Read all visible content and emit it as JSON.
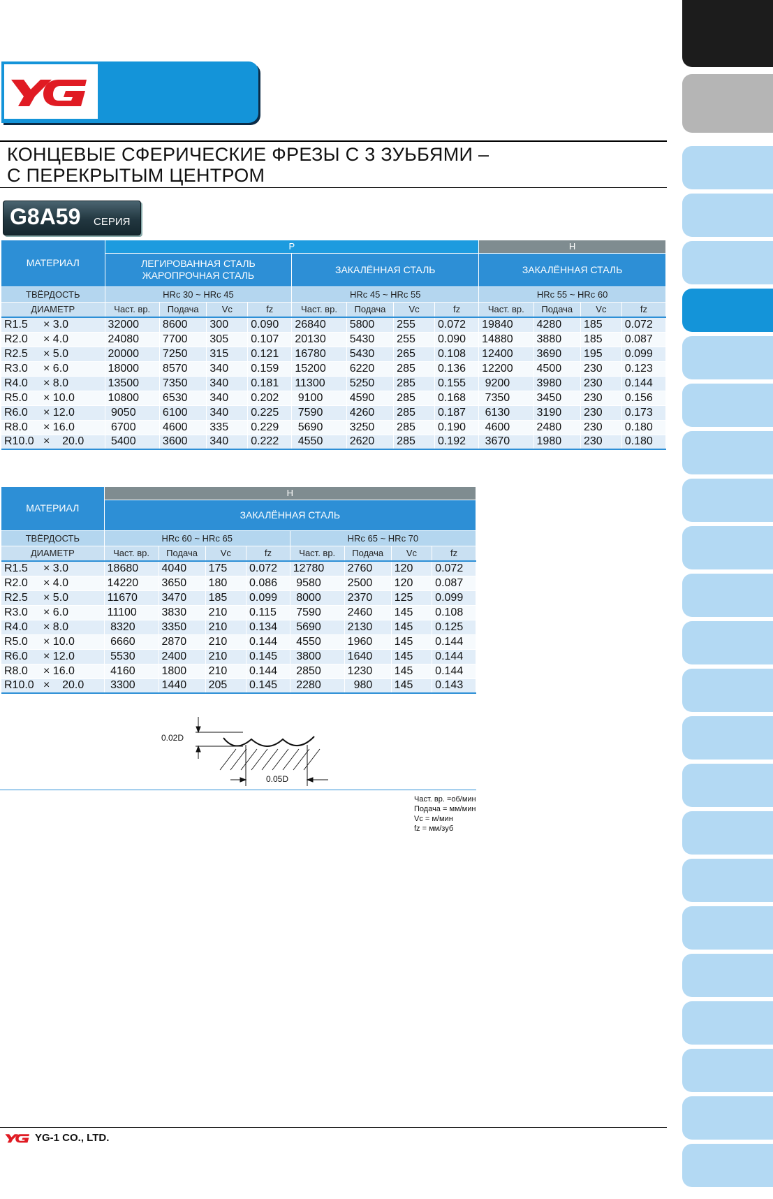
{
  "brand": {
    "logo_text": "YG",
    "company": "YG-1 CO., LTD.",
    "brand_red": "#e01b23",
    "brand_blue": "#1494d9"
  },
  "title": {
    "line1": "КОНЦЕВЫЕ СФЕРИЧЕСКИЕ ФРЕЗЫ С 3 ЗУЬБЯМИ –",
    "line2": "С ПЕРЕКРЫТЫМ ЦЕНТРОМ"
  },
  "series": {
    "code": "G8A59",
    "word": "СЕРИЯ"
  },
  "labels": {
    "material": "МАТЕРИАЛ",
    "hardness": "ТВЁРДОСТЬ",
    "diameter": "ДИАМЕТР"
  },
  "columns": [
    "Част. вр.",
    "Подача",
    "Vc",
    "fz"
  ],
  "diameters": [
    {
      "r": "R1.5",
      "l": "× 3.0"
    },
    {
      "r": "R2.0",
      "l": "× 4.0"
    },
    {
      "r": "R2.5",
      "l": "× 5.0"
    },
    {
      "r": "R3.0",
      "l": "× 6.0"
    },
    {
      "r": "R4.0",
      "l": "× 8.0"
    },
    {
      "r": "R5.0",
      "l": "× 10.0"
    },
    {
      "r": "R6.0",
      "l": "× 12.0"
    },
    {
      "r": "R8.0",
      "l": "× 16.0"
    },
    {
      "r": "R10.0",
      "l": "×    20.0"
    }
  ],
  "table1": {
    "group_p": "P",
    "group_h": "H",
    "materials": [
      "ЛЕГИРОВАННАЯ СТАЛЬ\nЖАРОПРОЧНАЯ СТАЛЬ",
      "ЗАКАЛЁННАЯ СТАЛЬ",
      "ЗАКАЛЁННАЯ СТАЛЬ"
    ],
    "hardness": [
      "HRc 30 ~ HRc 45",
      "HRc 45 ~ HRc 55",
      "HRc 55 ~ HRc 60"
    ],
    "rows": [
      [
        "32000",
        "8600",
        "300",
        "0.090",
        "26840",
        "5800",
        "255",
        "0.072",
        "19840",
        "4280",
        "185",
        "0.072"
      ],
      [
        "24080",
        "7700",
        "305",
        "0.107",
        "20130",
        "5430",
        "255",
        "0.090",
        "14880",
        "3880",
        "185",
        "0.087"
      ],
      [
        "20000",
        "7250",
        "315",
        "0.121",
        "16780",
        "5430",
        "265",
        "0.108",
        "12400",
        "3690",
        "195",
        "0.099"
      ],
      [
        "18000",
        "8570",
        "340",
        "0.159",
        "15200",
        "6220",
        "285",
        "0.136",
        "12200",
        "4500",
        "230",
        "0.123"
      ],
      [
        "13500",
        "7350",
        "340",
        "0.181",
        "11300",
        "5250",
        "285",
        "0.155",
        " 9200",
        "3980",
        "230",
        "0.144"
      ],
      [
        "10800",
        "6530",
        "340",
        "0.202",
        " 9100",
        "4590",
        "285",
        "0.168",
        " 7350",
        "3450",
        "230",
        "0.156"
      ],
      [
        " 9050",
        "6100",
        "340",
        "0.225",
        " 7590",
        "4260",
        "285",
        "0.187",
        " 6130",
        "3190",
        "230",
        "0.173"
      ],
      [
        " 6700",
        "4600",
        "335",
        "0.229",
        " 5690",
        "3250",
        "285",
        "0.190",
        " 4600",
        "2480",
        "230",
        "0.180"
      ],
      [
        " 5400",
        "3600",
        "340",
        "0.222",
        " 4550",
        "2620",
        "285",
        "0.192",
        " 3670",
        "1980",
        "230",
        "0.180"
      ]
    ]
  },
  "table2": {
    "group_h": "H",
    "material": "ЗАКАЛЁННАЯ СТАЛЬ",
    "hardness": [
      "HRc 60 ~ HRc 65",
      "HRc 65 ~ HRc 70"
    ],
    "rows": [
      [
        "18680",
        "4040",
        "175",
        "0.072",
        "12780",
        "2760",
        "120",
        "0.072"
      ],
      [
        "14220",
        "3650",
        "180",
        "0.086",
        " 9580",
        "2500",
        "120",
        "0.087"
      ],
      [
        "11670",
        "3470",
        "185",
        "0.099",
        " 8000",
        "2370",
        "125",
        "0.099"
      ],
      [
        "11100",
        "3830",
        "210",
        "0.115",
        " 7590",
        "2460",
        "145",
        "0.108"
      ],
      [
        " 8320",
        "3350",
        "210",
        "0.134",
        " 5690",
        "2130",
        "145",
        "0.125"
      ],
      [
        " 6660",
        "2870",
        "210",
        "0.144",
        " 4550",
        "1960",
        "145",
        "0.144"
      ],
      [
        " 5530",
        "2400",
        "210",
        "0.145",
        " 3800",
        "1640",
        "145",
        "0.144"
      ],
      [
        " 4160",
        "1800",
        "210",
        "0.144",
        " 2850",
        "1230",
        "145",
        "0.144"
      ],
      [
        " 3300",
        "1440",
        "205",
        "0.145",
        " 2280",
        "  980",
        "145",
        "0.143"
      ]
    ]
  },
  "diagram": {
    "label_depth": "0.02D",
    "label_pitch": "0.05D"
  },
  "legend": [
    "Част. вр. =об/мин",
    "Подача = мм/мин",
    "Vc = м/мин",
    "fz = мм/зуб"
  ],
  "side_tabs": {
    "dark": "#1c1c1c",
    "grey": "#b5b5b5",
    "light": "#b3d9f3",
    "active": "#1494d9"
  }
}
